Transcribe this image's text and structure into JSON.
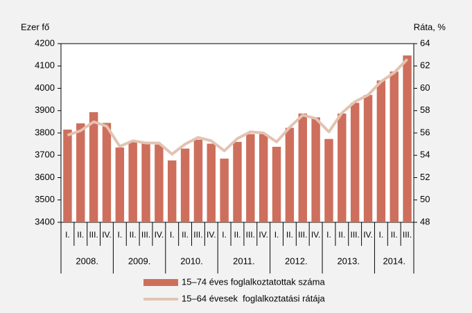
{
  "chart_data": {
    "type": "bar",
    "y_label": "Ezer fő",
    "y2_label": "Ráta, %",
    "categories": [
      "I.",
      "II.",
      "III.",
      "IV.",
      "I.",
      "II.",
      "III.",
      "IV.",
      "I.",
      "II.",
      "III.",
      "IV.",
      "I.",
      "II.",
      "III.",
      "IV.",
      "I.",
      "II.",
      "III.",
      "IV.",
      "I.",
      "II.",
      "III.",
      "IV.",
      "I.",
      "II.",
      "III."
    ],
    "years": [
      "2008.",
      "2009.",
      "2010.",
      "2011.",
      "2012.",
      "2013.",
      "2014."
    ],
    "series": [
      {
        "name": "15–74 éves foglalkoztatottak száma",
        "type": "bar",
        "color": "#cd6f5c",
        "values": [
          3815,
          3843,
          3893,
          3845,
          3735,
          3762,
          3752,
          3748,
          3677,
          3730,
          3770,
          3752,
          3685,
          3760,
          3795,
          3795,
          3738,
          3823,
          3887,
          3870,
          3773,
          3887,
          3935,
          3970,
          4035,
          4075,
          4147
        ]
      },
      {
        "name": "15–64 évesek  foglalkoztatási rátája",
        "type": "line",
        "axis": "y2",
        "color": "#e2c3b1",
        "values": [
          55.8,
          56.2,
          57.0,
          56.6,
          54.8,
          55.3,
          55.1,
          55.1,
          54.1,
          55.0,
          55.6,
          55.3,
          54.4,
          55.5,
          56.1,
          56.0,
          55.2,
          56.5,
          57.6,
          57.3,
          56.1,
          57.8,
          58.8,
          59.4,
          60.6,
          61.4,
          62.6
        ]
      }
    ],
    "ylim": [
      3400,
      4200
    ],
    "yticks": [
      3400,
      3500,
      3600,
      3700,
      3800,
      3900,
      4000,
      4100,
      4200
    ],
    "y2lim": [
      48,
      64
    ],
    "y2ticks": [
      48,
      50,
      52,
      54,
      56,
      58,
      60,
      62,
      64
    ],
    "grid": false
  }
}
